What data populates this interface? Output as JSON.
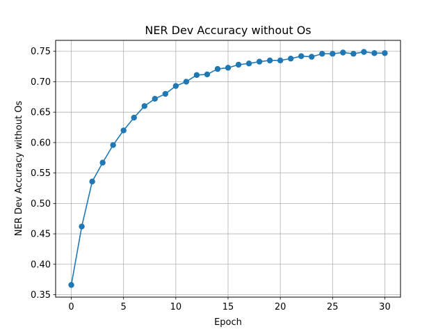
{
  "chart_data": {
    "type": "line",
    "title": "NER Dev Accuracy without Os",
    "xlabel": "Epoch",
    "ylabel": "NER Dev Accuracy without Os",
    "xlim": [
      -1.5,
      31.5
    ],
    "ylim": [
      0.346,
      0.768
    ],
    "xticks": [
      0,
      5,
      10,
      15,
      20,
      25,
      30
    ],
    "yticks": [
      0.35,
      0.4,
      0.45,
      0.5,
      0.55,
      0.6,
      0.65,
      0.7,
      0.75
    ],
    "grid": true,
    "marker": "circle",
    "color": "#1f77b4",
    "series": [
      {
        "x": [
          0,
          1,
          2,
          3,
          4,
          5,
          6,
          7,
          8,
          9,
          10,
          11,
          12,
          13,
          14,
          15,
          16,
          17,
          18,
          19,
          20,
          21,
          22,
          23,
          24,
          25,
          26,
          27,
          28,
          29,
          30
        ],
        "values": [
          0.366,
          0.462,
          0.536,
          0.567,
          0.596,
          0.62,
          0.641,
          0.66,
          0.672,
          0.68,
          0.693,
          0.7,
          0.711,
          0.712,
          0.721,
          0.723,
          0.728,
          0.73,
          0.733,
          0.735,
          0.735,
          0.738,
          0.742,
          0.741,
          0.746,
          0.746,
          0.748,
          0.746,
          0.749,
          0.747,
          0.747
        ]
      }
    ]
  }
}
